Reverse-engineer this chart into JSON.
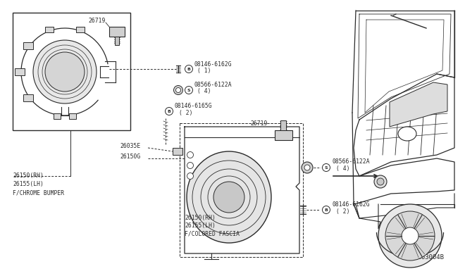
{
  "bg_color": "#ffffff",
  "line_color": "#2a2a2a",
  "diagram_id": "R263004B",
  "text_fontsize": 6.5,
  "small_fontsize": 5.8,
  "title_fontsize": 7.0
}
